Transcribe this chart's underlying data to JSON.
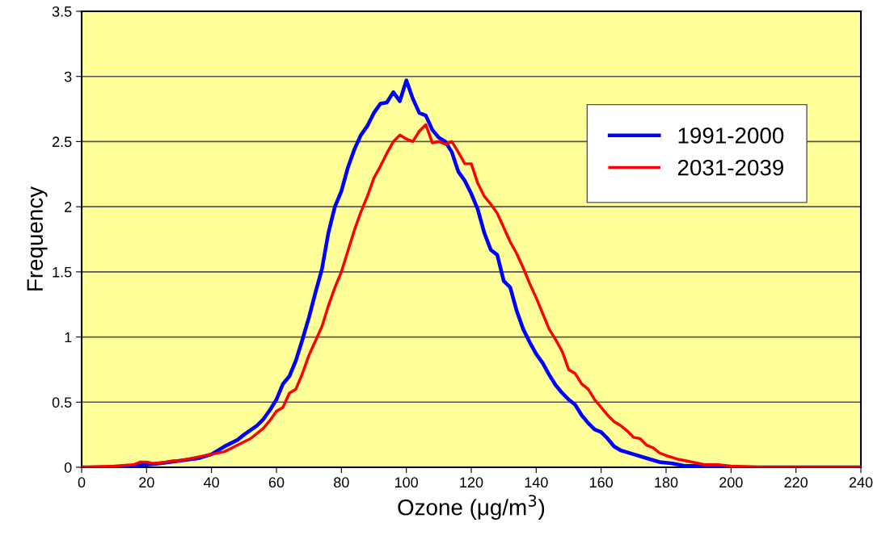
{
  "chart_data": {
    "type": "line",
    "xlabel": "Ozone (μg/m$^{3}$)",
    "ylabel": "Frequency",
    "xlim": [
      0,
      240
    ],
    "xticks": [
      0,
      20,
      40,
      60,
      80,
      100,
      120,
      140,
      160,
      180,
      200,
      220,
      240
    ],
    "ylim": [
      0,
      3.5
    ],
    "yticks": [
      0,
      0.5,
      1,
      1.5,
      2,
      2.5,
      3,
      3.5
    ],
    "grid": "y",
    "legend": "top right",
    "marker": "none",
    "line_style": "solid",
    "series": [
      {
        "name": "1991-2000",
        "color": "#0000ff",
        "x": [
          0,
          10,
          16,
          20,
          24,
          30,
          36,
          40,
          44,
          48,
          50,
          54,
          56,
          58,
          60,
          62,
          64,
          66,
          68,
          70,
          72,
          74,
          76,
          78,
          80,
          82,
          84,
          86,
          88,
          90,
          92,
          94,
          96,
          98,
          100,
          102,
          104,
          106,
          108,
          110,
          112,
          114,
          116,
          118,
          120,
          122,
          124,
          126,
          128,
          130,
          132,
          134,
          136,
          138,
          140,
          142,
          144,
          146,
          148,
          150,
          152,
          154,
          156,
          158,
          160,
          162,
          164,
          166,
          170,
          174,
          178,
          182,
          186,
          190,
          196,
          200,
          240
        ],
        "values": [
          0,
          0,
          0.01,
          0.02,
          0.03,
          0.05,
          0.07,
          0.1,
          0.16,
          0.21,
          0.25,
          0.32,
          0.37,
          0.44,
          0.52,
          0.64,
          0.7,
          0.82,
          0.98,
          1.15,
          1.34,
          1.52,
          1.8,
          2.0,
          2.12,
          2.3,
          2.44,
          2.55,
          2.62,
          2.72,
          2.79,
          2.8,
          2.88,
          2.81,
          2.97,
          2.83,
          2.72,
          2.7,
          2.59,
          2.53,
          2.5,
          2.42,
          2.27,
          2.2,
          2.1,
          1.98,
          1.8,
          1.67,
          1.63,
          1.43,
          1.38,
          1.2,
          1.06,
          0.96,
          0.87,
          0.8,
          0.71,
          0.63,
          0.57,
          0.52,
          0.48,
          0.4,
          0.34,
          0.29,
          0.27,
          0.22,
          0.16,
          0.13,
          0.1,
          0.07,
          0.04,
          0.03,
          0.01,
          0.01,
          0,
          0,
          0
        ]
      },
      {
        "name": "2031-2039",
        "color": "#ff0000",
        "x": [
          0,
          10,
          16,
          18,
          20,
          22,
          26,
          28,
          30,
          36,
          40,
          44,
          48,
          52,
          56,
          58,
          60,
          62,
          64,
          66,
          68,
          70,
          72,
          74,
          76,
          78,
          80,
          82,
          84,
          86,
          88,
          90,
          92,
          94,
          96,
          98,
          100,
          102,
          104,
          106,
          108,
          110,
          112,
          114,
          116,
          118,
          120,
          122,
          124,
          126,
          128,
          130,
          132,
          134,
          136,
          138,
          140,
          142,
          144,
          146,
          148,
          150,
          152,
          154,
          156,
          158,
          160,
          162,
          164,
          166,
          168,
          170,
          172,
          174,
          176,
          178,
          180,
          184,
          188,
          192,
          196,
          200,
          210,
          240
        ],
        "values": [
          0,
          0.01,
          0.02,
          0.04,
          0.04,
          0.03,
          0.04,
          0.05,
          0.05,
          0.08,
          0.1,
          0.12,
          0.17,
          0.22,
          0.3,
          0.36,
          0.43,
          0.46,
          0.57,
          0.6,
          0.72,
          0.86,
          0.97,
          1.08,
          1.24,
          1.38,
          1.5,
          1.66,
          1.82,
          1.96,
          2.08,
          2.22,
          2.31,
          2.41,
          2.5,
          2.55,
          2.52,
          2.5,
          2.58,
          2.63,
          2.49,
          2.5,
          2.48,
          2.5,
          2.42,
          2.33,
          2.33,
          2.18,
          2.08,
          2.02,
          1.95,
          1.84,
          1.73,
          1.64,
          1.53,
          1.41,
          1.3,
          1.18,
          1.06,
          0.98,
          0.89,
          0.75,
          0.72,
          0.64,
          0.6,
          0.52,
          0.46,
          0.4,
          0.35,
          0.32,
          0.28,
          0.23,
          0.22,
          0.17,
          0.15,
          0.11,
          0.09,
          0.06,
          0.04,
          0.02,
          0.02,
          0.01,
          0,
          0
        ]
      }
    ]
  }
}
